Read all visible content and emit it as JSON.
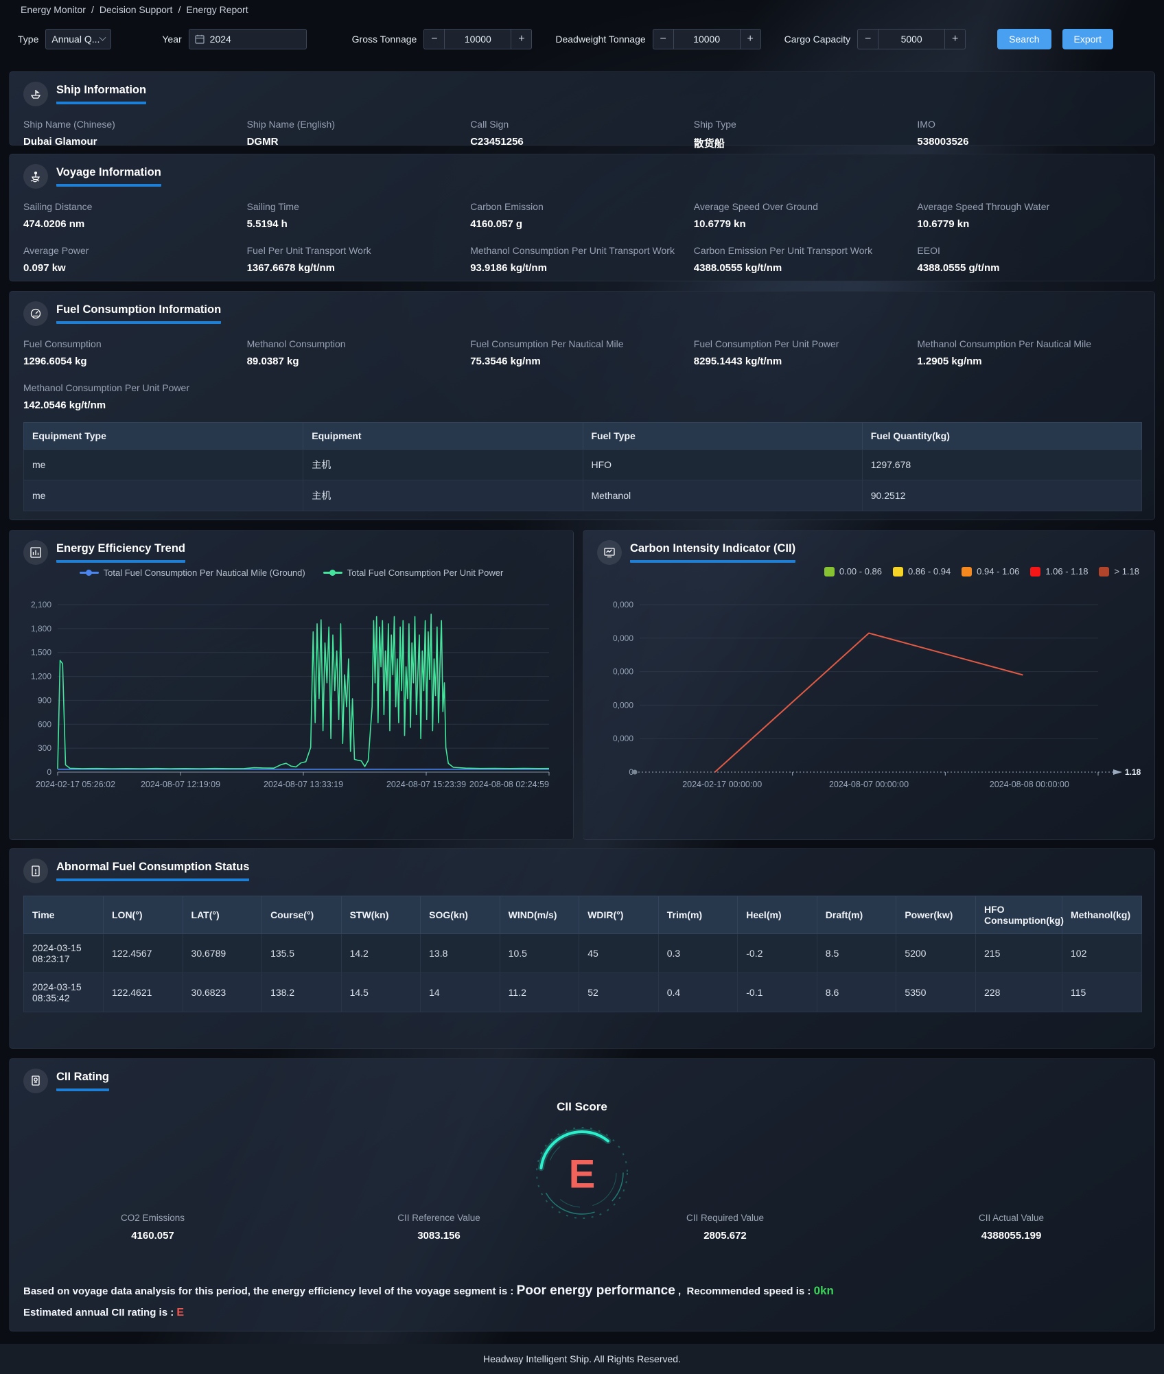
{
  "breadcrumb": {
    "items": [
      "Energy Monitor",
      "Decision Support",
      "Energy Report"
    ],
    "separator": "/"
  },
  "filters": {
    "type_label": "Type",
    "type_value": "Annual Q...",
    "year_label": "Year",
    "year_value": "2024",
    "gross_label": "Gross Tonnage",
    "gross_value": "10000",
    "deadweight_label": "Deadweight Tonnage",
    "deadweight_value": "10000",
    "cargo_label": "Cargo Capacity",
    "cargo_value": "5000",
    "minus": "−",
    "plus": "+",
    "search_label": "Search",
    "export_label": "Export"
  },
  "ship_info": {
    "title": "Ship Information",
    "fields": [
      {
        "label": "Ship Name (Chinese)",
        "value": "Dubai Glamour"
      },
      {
        "label": "Ship Name (English)",
        "value": "DGMR"
      },
      {
        "label": "Call Sign",
        "value": "C23451256"
      },
      {
        "label": "Ship Type",
        "value": "散货船"
      },
      {
        "label": "IMO",
        "value": "538003526"
      }
    ]
  },
  "voyage_info": {
    "title": "Voyage Information",
    "fields": [
      {
        "label": "Sailing Distance",
        "value": "474.0206 nm"
      },
      {
        "label": "Sailing Time",
        "value": "5.5194 h"
      },
      {
        "label": "Carbon Emission",
        "value": "4160.057 g"
      },
      {
        "label": "Average Speed Over Ground",
        "value": "10.6779 kn"
      },
      {
        "label": "Average Speed Through Water",
        "value": "10.6779 kn"
      },
      {
        "label": "Average Power",
        "value": "0.097 kw"
      },
      {
        "label": "Fuel Per Unit Transport Work",
        "value": "1367.6678 kg/t/nm"
      },
      {
        "label": "Methanol Consumption Per Unit Transport Work",
        "value": "93.9186 kg/t/nm"
      },
      {
        "label": "Carbon Emission Per Unit Transport Work",
        "value": "4388.0555 kg/t/nm"
      },
      {
        "label": "EEOI",
        "value": "4388.0555 g/t/nm"
      }
    ]
  },
  "fuel_info": {
    "title": "Fuel Consumption Information",
    "fields": [
      {
        "label": "Fuel Consumption",
        "value": "1296.6054 kg"
      },
      {
        "label": "Methanol Consumption",
        "value": "89.0387 kg"
      },
      {
        "label": "Fuel Consumption Per Nautical Mile",
        "value": "75.3546 kg/nm"
      },
      {
        "label": "Fuel Consumption Per Unit Power",
        "value": "8295.1443 kg/t/nm"
      },
      {
        "label": "Methanol Consumption Per Nautical Mile",
        "value": "1.2905 kg/nm"
      },
      {
        "label": "Methanol Consumption Per Unit Power",
        "value": "142.0546 kg/t/nm"
      }
    ],
    "table": {
      "headers": [
        "Equipment Type",
        "Equipment",
        "Fuel Type",
        "Fuel Quantity(kg)"
      ],
      "rows": [
        [
          "me",
          "主机",
          "HFO",
          "1297.678"
        ],
        [
          "me",
          "主机",
          "Methanol",
          "90.2512"
        ]
      ]
    }
  },
  "energy_trend": {
    "title": "Energy Efficiency Trend"
  },
  "cii_chart": {
    "title": "Carbon Intensity Indicator (CII)"
  },
  "chart_data": [
    {
      "type": "line",
      "title": "Energy Efficiency Trend",
      "ylim": [
        0,
        2100
      ],
      "yticks": [
        "0",
        "300",
        "600",
        "900",
        "1,200",
        "1,500",
        "1,800",
        "2,100"
      ],
      "xticks": [
        "2024-02-17 05:26:02",
        "2024-08-07 12:19:09",
        "2024-08-07 13:33:19",
        "2024-08-07 15:23:39",
        "2024-08-08 02:24:59"
      ],
      "grid": true,
      "legend_position": "top-center",
      "series": [
        {
          "name": "Total Fuel Consumption Per Nautical Mile (Ground)",
          "color": "#4b86f0",
          "points": [
            [
              0,
              36
            ],
            [
              100,
              36
            ]
          ]
        },
        {
          "name": "Total Fuel Consumption Per Unit Power",
          "color": "#43e59c",
          "points": [
            [
              0,
              40
            ],
            [
              0.5,
              1400
            ],
            [
              1,
              1360
            ],
            [
              1.6,
              90
            ],
            [
              2.5,
              48
            ],
            [
              5,
              44
            ],
            [
              8,
              46
            ],
            [
              11,
              43
            ],
            [
              14,
              45
            ],
            [
              17,
              43
            ],
            [
              20,
              46
            ],
            [
              23,
              43
            ],
            [
              26,
              45
            ],
            [
              29,
              43
            ],
            [
              32,
              46
            ],
            [
              35,
              44
            ],
            [
              38,
              45
            ],
            [
              40,
              55
            ],
            [
              42,
              52
            ],
            [
              44,
              50
            ],
            [
              45.5,
              95
            ],
            [
              46.5,
              110
            ],
            [
              47.5,
              75
            ],
            [
              48.5,
              65
            ],
            [
              49.5,
              115
            ],
            [
              50.5,
              130
            ],
            [
              51.5,
              310
            ],
            [
              52,
              1760
            ],
            [
              52.4,
              620
            ],
            [
              52.8,
              1860
            ],
            [
              53.2,
              920
            ],
            [
              53.6,
              1910
            ],
            [
              54,
              520
            ],
            [
              54.4,
              1620
            ],
            [
              54.8,
              1120
            ],
            [
              55.2,
              1820
            ],
            [
              55.6,
              420
            ],
            [
              56,
              1720
            ],
            [
              56.4,
              1020
            ],
            [
              56.8,
              1520
            ],
            [
              57.2,
              660
            ],
            [
              57.6,
              1860
            ],
            [
              58,
              360
            ],
            [
              58.4,
              1220
            ],
            [
              58.8,
              820
            ],
            [
              59.2,
              1420
            ],
            [
              59.6,
              260
            ],
            [
              60,
              920
            ],
            [
              60.4,
              160
            ],
            [
              61,
              150
            ],
            [
              61.8,
              140
            ],
            [
              62.5,
              70
            ],
            [
              63.2,
              145
            ],
            [
              64,
              820
            ],
            [
              64.3,
              1900
            ],
            [
              64.6,
              1120
            ],
            [
              64.9,
              1950
            ],
            [
              65.2,
              620
            ],
            [
              65.5,
              1820
            ],
            [
              65.8,
              1320
            ],
            [
              66.1,
              1900
            ],
            [
              66.4,
              720
            ],
            [
              66.7,
              1520
            ],
            [
              67,
              1020
            ],
            [
              67.3,
              1860
            ],
            [
              67.6,
              520
            ],
            [
              67.9,
              1720
            ],
            [
              68.2,
              1220
            ],
            [
              68.5,
              1950
            ],
            [
              68.8,
              820
            ],
            [
              69.1,
              1420
            ],
            [
              69.4,
              620
            ],
            [
              69.7,
              1820
            ],
            [
              70,
              1020
            ],
            [
              70.3,
              1900
            ],
            [
              70.6,
              460
            ],
            [
              70.9,
              1320
            ],
            [
              71.2,
              920
            ],
            [
              71.5,
              1860
            ],
            [
              71.8,
              560
            ],
            [
              72.1,
              1620
            ],
            [
              72.4,
              1120
            ],
            [
              72.7,
              1950
            ],
            [
              73,
              720
            ],
            [
              73.3,
              1220
            ],
            [
              73.6,
              1720
            ],
            [
              73.9,
              420
            ],
            [
              74.2,
              1520
            ],
            [
              74.5,
              1020
            ],
            [
              74.8,
              1900
            ],
            [
              75.1,
              660
            ],
            [
              75.4,
              1760
            ],
            [
              75.7,
              1160
            ],
            [
              76,
              1980
            ],
            [
              76.3,
              520
            ],
            [
              76.6,
              1420
            ],
            [
              76.9,
              960
            ],
            [
              77.2,
              1820
            ],
            [
              77.5,
              620
            ],
            [
              77.8,
              1320
            ],
            [
              78.1,
              1900
            ],
            [
              78.4,
              760
            ],
            [
              78.7,
              1120
            ],
            [
              79,
              310
            ],
            [
              79.5,
              110
            ],
            [
              80.5,
              60
            ],
            [
              83,
              50
            ],
            [
              86,
              46
            ],
            [
              89,
              47
            ],
            [
              92,
              45
            ],
            [
              95,
              47
            ],
            [
              98,
              45
            ],
            [
              100,
              46
            ]
          ]
        }
      ]
    },
    {
      "type": "line",
      "title": "Carbon Intensity Indicator (CII)",
      "ylim": [
        0,
        1
      ],
      "yticks": [
        "0",
        "0,000",
        "0,000",
        "0,000",
        "0,000",
        "0,000"
      ],
      "xticks": [
        "2024-02-17 00:00:00",
        "2024-08-07 00:00:00",
        "2024-08-08 00:00:00"
      ],
      "xtick_pos": [
        18,
        50,
        85
      ],
      "axis_end_label": "1.18",
      "grid": true,
      "legend_position": "top-right",
      "series": [
        {
          "name": "CII",
          "color": "#e05a44",
          "points": [
            [
              16.4,
              0
            ],
            [
              50,
              0.83
            ],
            [
              83.6,
              0.58
            ]
          ]
        }
      ],
      "legend": [
        {
          "label": "0.00 - 0.86",
          "color": "#86c232"
        },
        {
          "label": "0.86 - 0.94",
          "color": "#f5d327"
        },
        {
          "label": "0.94 - 1.06",
          "color": "#f5881f"
        },
        {
          "label": "1.06 - 1.18",
          "color": "#f51717"
        },
        {
          "label": "> 1.18",
          "color": "#b0452b"
        }
      ]
    }
  ],
  "abnormal": {
    "title": "Abnormal Fuel Consumption Status",
    "headers": [
      "Time",
      "LON(°)",
      "LAT(°)",
      "Course(°)",
      "STW(kn)",
      "SOG(kn)",
      "WIND(m/s)",
      "WDIR(°)",
      "Trim(m)",
      "Heel(m)",
      "Draft(m)",
      "Power(kw)",
      "HFO Consumption(kg)",
      "Methanol(kg)"
    ],
    "rows": [
      [
        "2024-03-15 08:23:17",
        "122.4567",
        "30.6789",
        "135.5",
        "14.2",
        "13.8",
        "10.5",
        "45",
        "0.3",
        "-0.2",
        "8.5",
        "5200",
        "215",
        "102"
      ],
      [
        "2024-03-15 08:35:42",
        "122.4621",
        "30.6823",
        "138.2",
        "14.5",
        "14",
        "11.2",
        "52",
        "0.4",
        "-0.1",
        "8.6",
        "5350",
        "228",
        "115"
      ]
    ]
  },
  "cii_rating": {
    "title": "CII Rating",
    "score_label": "CII Score",
    "grade": "E",
    "grade_color": "#f2635c",
    "ring_color": "#27e8c8",
    "stats": [
      {
        "label": "CO2 Emissions",
        "value": "4160.057"
      },
      {
        "label": "CII Reference Value",
        "value": "3083.156"
      },
      {
        "label": "CII Required Value",
        "value": "2805.672"
      },
      {
        "label": "CII Actual Value",
        "value": "4388055.199"
      }
    ],
    "analysis": {
      "line1_prefix": "Based on voyage data analysis for this period, the energy efficiency level of the voyage segment is :",
      "line1_highlight": "Poor energy performance",
      "line1_comma": ",",
      "line1_speed_label": "Recommended speed is :",
      "line1_speed_value": "0kn",
      "line2_prefix": "Estimated annual CII rating is :",
      "line2_rating": "E"
    }
  },
  "footer": {
    "text": "Headway Intelligent Ship. All Rights Reserved."
  }
}
